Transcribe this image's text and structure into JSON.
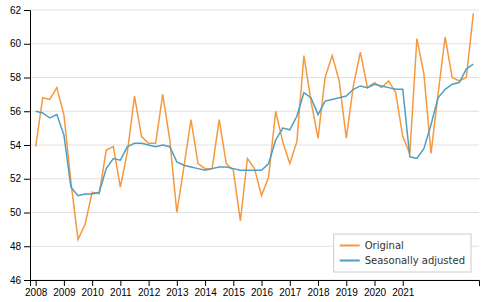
{
  "chart_data": {
    "type": "line",
    "x": [
      2008,
      2008.25,
      2008.5,
      2008.75,
      2009,
      2009.25,
      2009.5,
      2009.75,
      2010,
      2010.25,
      2010.5,
      2010.75,
      2011,
      2011.25,
      2011.5,
      2011.75,
      2012,
      2012.25,
      2012.5,
      2012.75,
      2013,
      2013.25,
      2013.5,
      2013.75,
      2014,
      2014.25,
      2014.5,
      2014.75,
      2015,
      2015.25,
      2015.5,
      2015.75,
      2016,
      2016.25,
      2016.5,
      2016.75,
      2017,
      2017.25,
      2017.5,
      2017.75,
      2018,
      2018.25,
      2018.5,
      2018.75,
      2019,
      2019.25,
      2019.5,
      2019.75,
      2020,
      2020.25,
      2020.5,
      2020.75,
      2021,
      2021.25,
      2021.5,
      2021.75,
      2022,
      2022.25,
      2022.5,
      2022.75,
      2023,
      2023.25,
      2023.5
    ],
    "series": [
      {
        "name": "Original",
        "color": "#f5993d",
        "values": [
          53.9,
          56.8,
          56.7,
          57.4,
          55.8,
          51.8,
          48.4,
          49.3,
          51.2,
          51.1,
          53.7,
          53.9,
          51.5,
          53.6,
          56.9,
          54.5,
          54.1,
          54.1,
          57.0,
          54.3,
          50.0,
          52.7,
          55.5,
          52.9,
          52.6,
          52.6,
          55.5,
          52.9,
          52.5,
          49.5,
          53.2,
          52.6,
          51.0,
          52.1,
          56.0,
          54.2,
          52.9,
          54.2,
          59.3,
          56.6,
          54.4,
          58.0,
          59.3,
          57.8,
          54.4,
          57.5,
          59.5,
          57.4,
          57.7,
          57.4,
          57.8,
          57.1,
          54.5,
          53.5,
          60.3,
          58.2,
          53.5,
          57.0,
          60.4,
          58.0,
          57.8,
          58.0,
          61.8
        ]
      },
      {
        "name": "Seasonally adjusted",
        "color": "#4e9ec2",
        "values": [
          56.0,
          55.9,
          55.6,
          55.8,
          54.6,
          51.5,
          51.0,
          51.1,
          51.1,
          51.2,
          52.6,
          53.2,
          53.1,
          53.9,
          54.1,
          54.1,
          54.0,
          53.9,
          54.0,
          53.9,
          53.0,
          52.8,
          52.7,
          52.6,
          52.5,
          52.6,
          52.7,
          52.7,
          52.6,
          52.5,
          52.5,
          52.5,
          52.5,
          52.9,
          54.3,
          55.0,
          54.9,
          55.7,
          57.1,
          56.8,
          55.8,
          56.6,
          56.7,
          56.8,
          56.9,
          57.3,
          57.5,
          57.4,
          57.6,
          57.5,
          57.4,
          57.3,
          57.3,
          53.3,
          53.2,
          53.8,
          55.2,
          56.8,
          57.3,
          57.6,
          57.7,
          58.5,
          58.8
        ]
      }
    ],
    "xlim": [
      2007.8,
      2023.7
    ],
    "xticks": [
      2008,
      2009,
      2010,
      2011,
      2012,
      2013,
      2014,
      2015,
      2016,
      2017,
      2018,
      2019,
      2020,
      2021
    ],
    "ylim": [
      46,
      62
    ],
    "yticks": [
      46,
      48,
      50,
      52,
      54,
      56,
      58,
      60,
      62
    ],
    "grid": true,
    "legend": "lower right"
  }
}
